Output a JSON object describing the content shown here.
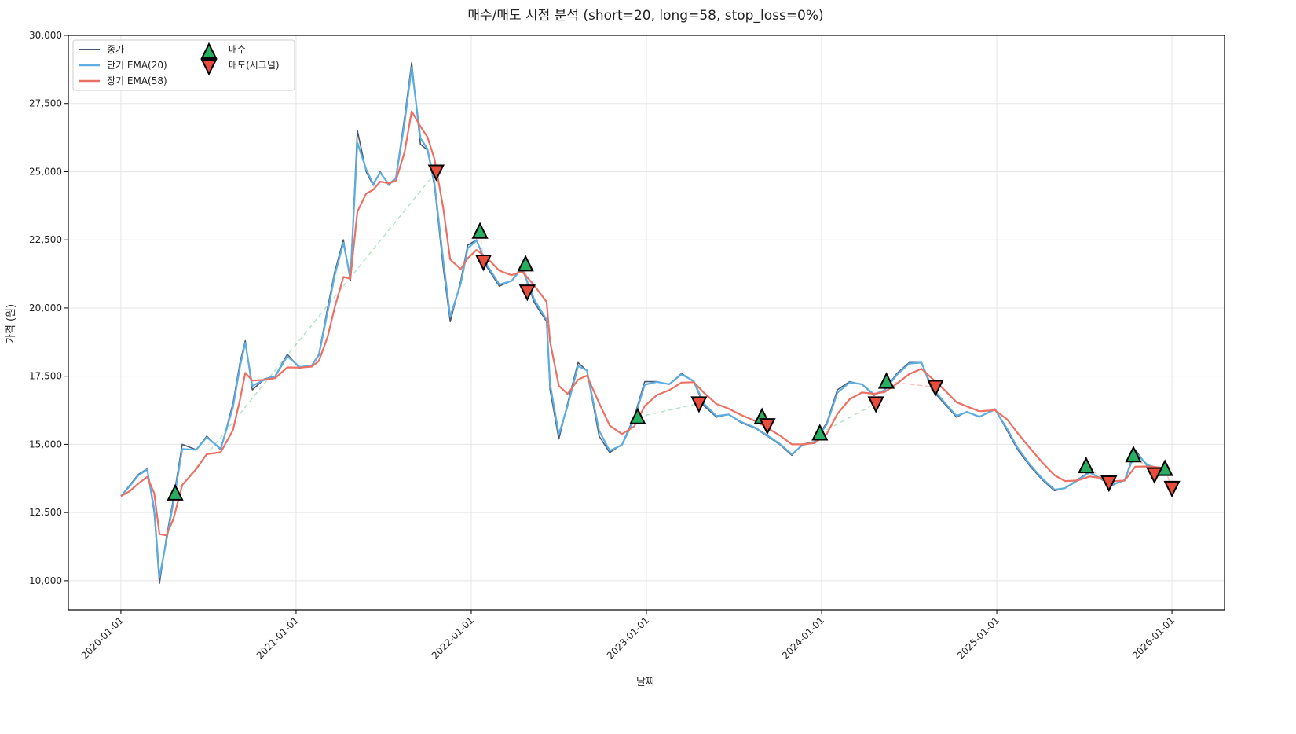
{
  "chart_data": {
    "type": "line",
    "title": "매수/매도 시점 분석 (short=20, long=58, stop_loss=0%)",
    "xlabel": "날짜",
    "ylabel": "가격 (원)",
    "xlim": [
      2019.7,
      2026.3
    ],
    "ylim": [
      8930,
      30000
    ],
    "grid": true,
    "legend_position": "top-left",
    "x_ticks": [
      {
        "value": 2020,
        "label": "2020-01-01"
      },
      {
        "value": 2021,
        "label": "2021-01-01"
      },
      {
        "value": 2022,
        "label": "2022-01-01"
      },
      {
        "value": 2023,
        "label": "2023-01-01"
      },
      {
        "value": 2024,
        "label": "2024-01-01"
      },
      {
        "value": 2025,
        "label": "2025-01-01"
      },
      {
        "value": 2026,
        "label": "2026-01-01"
      }
    ],
    "y_ticks": [
      {
        "value": 10000,
        "label": "10,000"
      },
      {
        "value": 12500,
        "label": "12,500"
      },
      {
        "value": 15000,
        "label": "15,000"
      },
      {
        "value": 17500,
        "label": "17,500"
      },
      {
        "value": 20000,
        "label": "20,000"
      },
      {
        "value": 22500,
        "label": "22,500"
      },
      {
        "value": 25000,
        "label": "25,000"
      },
      {
        "value": 27500,
        "label": "27,500"
      },
      {
        "value": 30000,
        "label": "30,000"
      }
    ],
    "x": [
      2020.0,
      2020.05,
      2020.1,
      2020.15,
      2020.19,
      2020.22,
      2020.26,
      2020.3,
      2020.35,
      2020.43,
      2020.49,
      2020.57,
      2020.64,
      2020.68,
      2020.71,
      2020.75,
      2020.82,
      2020.88,
      2020.95,
      2021.02,
      2021.09,
      2021.13,
      2021.18,
      2021.22,
      2021.27,
      2021.31,
      2021.35,
      2021.4,
      2021.44,
      2021.48,
      2021.53,
      2021.57,
      2021.62,
      2021.66,
      2021.71,
      2021.75,
      2021.79,
      2021.84,
      2021.88,
      2021.94,
      2021.98,
      2022.03,
      2022.09,
      2022.16,
      2022.23,
      2022.29,
      2022.36,
      2022.43,
      2022.45,
      2022.5,
      2022.55,
      2022.61,
      2022.66,
      2022.73,
      2022.79,
      2022.86,
      2022.93,
      2022.99,
      2023.06,
      2023.13,
      2023.2,
      2023.27,
      2023.33,
      2023.4,
      2023.47,
      2023.54,
      2023.62,
      2023.69,
      2023.76,
      2023.83,
      2023.89,
      2023.96,
      2024.03,
      2024.09,
      2024.16,
      2024.23,
      2024.3,
      2024.36,
      2024.43,
      2024.5,
      2024.57,
      2024.63,
      2024.7,
      2024.77,
      2024.83,
      2024.9,
      2024.99,
      2025.06,
      2025.12,
      2025.19,
      2025.26,
      2025.33,
      2025.39,
      2025.46,
      2025.53,
      2025.6,
      2025.66,
      2025.73,
      2025.79,
      2025.86,
      2025.93,
      2025.99
    ],
    "series": [
      {
        "name": "종가",
        "color": "#4a5a6e",
        "values": [
          13100,
          13500,
          13900,
          14100,
          12500,
          9900,
          11600,
          13000,
          15000,
          14800,
          15300,
          14800,
          16500,
          18000,
          18800,
          17000,
          17400,
          17500,
          18300,
          17800,
          17900,
          18300,
          20000,
          21300,
          22500,
          21000,
          26500,
          25000,
          24500,
          25000,
          24500,
          24800,
          27000,
          29000,
          26000,
          25800,
          24500,
          21500,
          19500,
          21000,
          22300,
          22500,
          21500,
          20800,
          21000,
          21500,
          20200,
          19500,
          17000,
          15200,
          16500,
          18000,
          17700,
          15300,
          14700,
          15000,
          16000,
          17300,
          17300,
          17200,
          17600,
          17300,
          16400,
          16000,
          16100,
          15800,
          15600,
          15300,
          15000,
          14600,
          15000,
          15100,
          15800,
          17000,
          17300,
          17200,
          16800,
          17000,
          17600,
          18000,
          18000,
          17000,
          16500,
          16000,
          16200,
          16000,
          16300,
          15500,
          14800,
          14200,
          13700,
          13300,
          13400,
          13700,
          14000,
          13700,
          13500,
          13700,
          14800,
          14200,
          14100,
          14100
        ]
      },
      {
        "name": "단기 EMA(20)",
        "color": "#5dade2",
        "ema_of": "종가",
        "span": 20
      },
      {
        "name": "장기 EMA(58)",
        "color": "#ec7063",
        "ema_of": "종가",
        "span": 58
      }
    ],
    "buy_signals": {
      "name": "매수",
      "color": "#27ae60",
      "x": [
        2020.31,
        2022.05,
        2022.31,
        2022.95,
        2023.66,
        2023.99,
        2024.37,
        2025.51,
        2025.78,
        2025.96
      ],
      "y": [
        13200,
        22800,
        21600,
        16000,
        16000,
        15400,
        17300,
        14200,
        14600,
        14100
      ]
    },
    "sell_signals": {
      "name": "매도(시그널)",
      "color": "#e74c3c",
      "x": [
        2021.8,
        2022.07,
        2022.32,
        2023.3,
        2023.69,
        2024.31,
        2024.65,
        2025.64,
        2025.9,
        2026.0
      ],
      "y": [
        25000,
        21700,
        20600,
        16500,
        15700,
        16500,
        17100,
        13600,
        13900,
        13400
      ]
    }
  }
}
